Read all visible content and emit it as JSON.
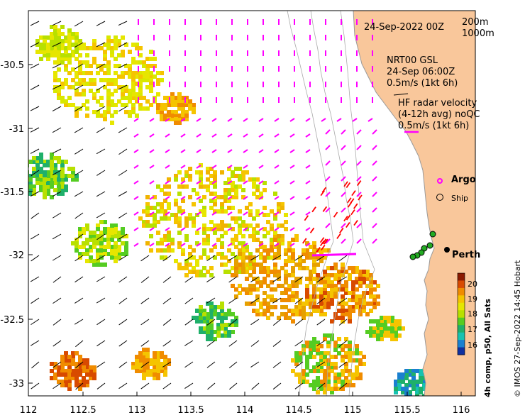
{
  "map": {
    "x_ticks": [
      "112",
      "112.5",
      "113",
      "113.5",
      "114",
      "114.5",
      "115",
      "115.5",
      "116"
    ],
    "y_ticks": [
      "-30.5",
      "-31",
      "-31.5",
      "-32",
      "-32.5",
      "-33"
    ],
    "x_range": [
      112,
      116.1
    ],
    "y_range": [
      -30.08,
      -33.12
    ],
    "land_color": "#f9c79b",
    "water_color": "#ffffff"
  },
  "labels": {
    "date": "24-Sep-2022 00Z",
    "contour_200": "200m",
    "contour_1000": "1000m",
    "model_line1": "NRT00 GSL",
    "model_line2": "24-Sep 06:00Z",
    "model_scale": "0.5m/s (1kt 6h)",
    "hf_line1": "HF radar velocity",
    "hf_line2": "(4-12h avg) noQC",
    "hf_scale": "0.5m/s (1kt 6h)",
    "argo": "Argo",
    "ship": "Ship",
    "city": "Perth",
    "credit": "© IMOS 27-Sep-2022 14:45 Hobart"
  },
  "colorbar": {
    "title": "4h comp, p50, All Sats",
    "ticks": [
      "20",
      "19",
      "18",
      "17",
      "16"
    ],
    "colors": [
      "#8b1a00",
      "#d84a00",
      "#f08c00",
      "#f5c400",
      "#e6e600",
      "#b8e000",
      "#55cc22",
      "#1fb06a",
      "#17c2b0",
      "#1a80d0",
      "#1030a0"
    ]
  },
  "colors": {
    "hf_arrow": "#ff00ff",
    "qc_arrow": "#ff0000",
    "model_arrow": "#000000",
    "ship_fill": "#22aa22"
  }
}
